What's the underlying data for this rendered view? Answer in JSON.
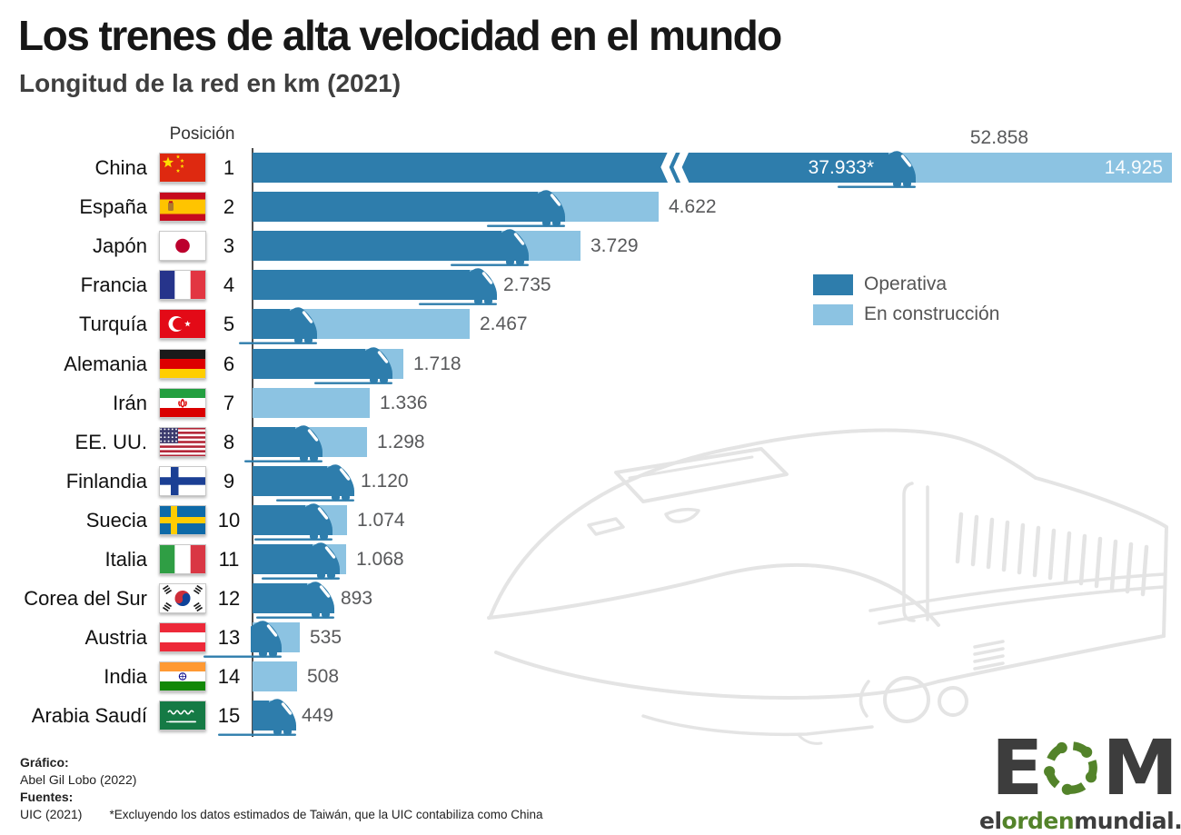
{
  "header": {
    "title": "Los trenes de alta velocidad en el mundo",
    "subtitle": "Longitud de la red en km (2021)"
  },
  "legend": {
    "operational": "Operativa",
    "construction": "En construcción",
    "position": "right-middle"
  },
  "colors": {
    "operational": "#2e7dac",
    "construction": "#8cc3e2",
    "value_gray": "#58595b",
    "title_black": "#171717",
    "axis_gray": "#4d4d4d",
    "sketch_gray": "#e4e4e4",
    "logo_dark": "#3d3d3d",
    "logo_green": "#53832a",
    "white": "#ffffff"
  },
  "chart_data": {
    "type": "bar",
    "orientation": "horizontal",
    "stacked": true,
    "unit": "km",
    "position_label": "Posición",
    "axis_break_on_first_row": true,
    "series_names": [
      "Operativa",
      "En construcción"
    ],
    "rows": [
      {
        "rank": 1,
        "country": "China",
        "flag": "cn",
        "total": 52858,
        "total_label": "52.858",
        "operational": 37933,
        "operational_label": "37.933*",
        "construction": 14925,
        "construction_label": "14.925",
        "broken_axis": true,
        "op_share_est": 0.7176
      },
      {
        "rank": 2,
        "country": "España",
        "flag": "es",
        "total": 4622,
        "total_label": "4.622",
        "op_share_est": 0.76
      },
      {
        "rank": 3,
        "country": "Japón",
        "flag": "jp",
        "total": 3729,
        "total_label": "3.729",
        "op_share_est": 0.83
      },
      {
        "rank": 4,
        "country": "Francia",
        "flag": "fr",
        "total": 2735,
        "total_label": "2.735",
        "op_share_est": 1
      },
      {
        "rank": 5,
        "country": "Turquía",
        "flag": "tr",
        "total": 2467,
        "total_label": "2.467",
        "op_share_est": 0.28
      },
      {
        "rank": 6,
        "country": "Alemania",
        "flag": "de",
        "total": 1718,
        "total_label": "1.718",
        "op_share_est": 0.9
      },
      {
        "rank": 7,
        "country": "Irán",
        "flag": "ir",
        "total": 1336,
        "total_label": "1.336",
        "op_share_est": 0
      },
      {
        "rank": 8,
        "country": "EE. UU.",
        "flag": "us",
        "total": 1298,
        "total_label": "1.298",
        "op_share_est": 0.58
      },
      {
        "rank": 9,
        "country": "Finlandia",
        "flag": "fi",
        "total": 1120,
        "total_label": "1.120",
        "op_share_est": 1
      },
      {
        "rank": 10,
        "country": "Suecia",
        "flag": "se",
        "total": 1074,
        "total_label": "1.074",
        "op_share_est": 0.81
      },
      {
        "rank": 11,
        "country": "Italia",
        "flag": "it",
        "total": 1068,
        "total_label": "1.068",
        "op_share_est": 0.89
      },
      {
        "rank": 12,
        "country": "Corea del Sur",
        "flag": "kr",
        "total": 893,
        "total_label": "893",
        "op_share_est": 1
      },
      {
        "rank": 13,
        "country": "Austria",
        "flag": "at",
        "total": 535,
        "total_label": "535",
        "op_share_est": 0.46
      },
      {
        "rank": 14,
        "country": "India",
        "flag": "in",
        "total": 508,
        "total_label": "508",
        "op_share_est": 0
      },
      {
        "rank": 15,
        "country": "Arabia Saudí",
        "flag": "sa",
        "total": 449,
        "total_label": "449",
        "op_share_est": 1
      }
    ]
  },
  "footer": {
    "credit_label": "Gráfico:",
    "credit": "Abel Gil Lobo (2022)",
    "sources_label": "Fuentes:",
    "source": "UIC (2021)",
    "note": "*Excluyendo los datos estimados de Taiwán, que la UIC contabiliza como China"
  },
  "logo": {
    "letter_e": "E",
    "letter_m": "M",
    "domain_el": "el",
    "domain_orden": "orden",
    "domain_rest": "mundial.com"
  }
}
